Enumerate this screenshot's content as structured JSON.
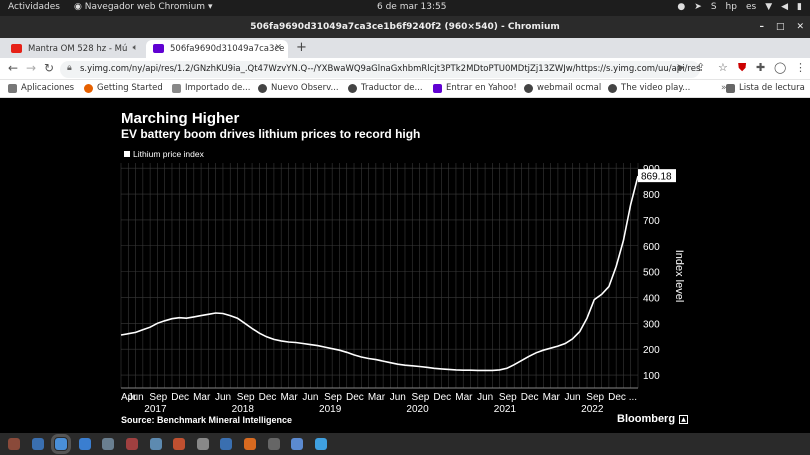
{
  "topbar": {
    "activities": "Actividades",
    "app_menu": "Navegador web Chromium",
    "clock": "6 de mar  13:55",
    "lang": "es"
  },
  "window": {
    "title": "506fa9690d31049a7ca3ce1b6f9240f2 (960×540) - Chromium"
  },
  "tabs": [
    {
      "label": "Mantra OM 528 hz - Mú",
      "color": "#e62117"
    },
    {
      "label": "506fa9690d31049a7ca3ce",
      "color": "#6001d2"
    }
  ],
  "omnibox": {
    "url": "s.yimg.com/ny/api/res/1.2/GNzhKU9ia_.Qt47WzvYN.Q--/YXBwaWQ9aGlnaGxhbmRlcjt3PTk2MDtoPTU0MDtjZj13ZWJw/https://s.yimg.com/uu/api/res/1.2/..."
  },
  "bookmarks": [
    {
      "label": "Aplicaciones",
      "color": "#777"
    },
    {
      "label": "Getting Started",
      "color": "#e66000"
    },
    {
      "label": "Importado de...",
      "color": "#888"
    },
    {
      "label": "Nuevo Observ...",
      "color": "#444"
    },
    {
      "label": "Traductor de...",
      "color": "#444"
    },
    {
      "label": "Entrar en Yahoo!",
      "color": "#6001d2"
    },
    {
      "label": "webmail ocmal",
      "color": "#444"
    },
    {
      "label": "The video play...",
      "color": "#444"
    },
    {
      "label": "Lista de lectura",
      "color": "#666"
    }
  ],
  "chart_page": {
    "title": "Marching Higher",
    "subtitle": "EV battery boom drives lithium prices to record high",
    "source": "Source: Benchmark Mineral Intelligence",
    "brand": "Bloomberg",
    "callout": "869.18"
  },
  "chart_data": {
    "type": "line",
    "ylabel": "Index level",
    "ylim": [
      50,
      920
    ],
    "y_ticks": [
      100,
      200,
      300,
      400,
      500,
      600,
      700,
      800,
      900
    ],
    "series": [
      {
        "name": "Lithium price index",
        "color": "#ffffff",
        "x": [
          0,
          1,
          2,
          3,
          4,
          5,
          6,
          7,
          8,
          9,
          10,
          11,
          12,
          13,
          14,
          15,
          16,
          17,
          18,
          19,
          20,
          21,
          22,
          23,
          24,
          25,
          26,
          27,
          28,
          29,
          30,
          31,
          32,
          33,
          34,
          35,
          36,
          37,
          38,
          39,
          40,
          41,
          42,
          43,
          44,
          45,
          46,
          47,
          48,
          49,
          50,
          51,
          52,
          53,
          54,
          55,
          56,
          57,
          58,
          59,
          60,
          61,
          62,
          63,
          64,
          65,
          66,
          67,
          68,
          69,
          70,
          71
        ],
        "values": [
          255,
          260,
          265,
          275,
          285,
          300,
          310,
          318,
          322,
          320,
          325,
          330,
          335,
          340,
          338,
          330,
          320,
          300,
          280,
          262,
          248,
          238,
          232,
          228,
          226,
          222,
          218,
          214,
          208,
          202,
          196,
          188,
          178,
          170,
          164,
          160,
          154,
          148,
          142,
          138,
          136,
          133,
          130,
          126,
          124,
          122,
          120,
          119,
          119,
          118,
          118,
          118,
          120,
          126,
          140,
          156,
          172,
          186,
          196,
          204,
          212,
          222,
          240,
          268,
          320,
          392,
          412,
          442,
          520,
          620,
          760,
          869.18
        ]
      }
    ],
    "x_ticks": [
      {
        "i": 0,
        "label": "Apr"
      },
      {
        "i": 2,
        "label": "Jun"
      },
      {
        "i": 5,
        "label": "Sep"
      },
      {
        "i": 8,
        "label": "Dec"
      },
      {
        "i": 11,
        "label": "Mar"
      },
      {
        "i": 14,
        "label": "Jun"
      },
      {
        "i": 17,
        "label": "Sep"
      },
      {
        "i": 20,
        "label": "Dec"
      },
      {
        "i": 23,
        "label": "Mar"
      },
      {
        "i": 26,
        "label": "Jun"
      },
      {
        "i": 29,
        "label": "Sep"
      },
      {
        "i": 32,
        "label": "Dec"
      },
      {
        "i": 35,
        "label": "Mar"
      },
      {
        "i": 38,
        "label": "Jun"
      },
      {
        "i": 41,
        "label": "Sep"
      },
      {
        "i": 44,
        "label": "Dec"
      },
      {
        "i": 47,
        "label": "Mar"
      },
      {
        "i": 50,
        "label": "Jun"
      },
      {
        "i": 53,
        "label": "Sep"
      },
      {
        "i": 56,
        "label": "Dec"
      },
      {
        "i": 59,
        "label": "Mar"
      },
      {
        "i": 62,
        "label": "Jun"
      },
      {
        "i": 65,
        "label": "Sep"
      },
      {
        "i": 68,
        "label": "Dec ..."
      }
    ],
    "years": [
      {
        "i": 5,
        "label": "2017"
      },
      {
        "i": 17,
        "label": "2018"
      },
      {
        "i": 29,
        "label": "2019"
      },
      {
        "i": 41,
        "label": "2020"
      },
      {
        "i": 53,
        "label": "2021"
      },
      {
        "i": 65,
        "label": "2022"
      }
    ],
    "background": "#000000",
    "grid": true,
    "legend": "top-left"
  },
  "taskbar": [
    {
      "name": "taskbar-app-1",
      "color": "#8a4a3a"
    },
    {
      "name": "taskbar-app-2",
      "color": "#3a6fb0"
    },
    {
      "name": "taskbar-app-3",
      "color": "#4a8fd8"
    },
    {
      "name": "taskbar-app-4",
      "color": "#3a7ed0"
    },
    {
      "name": "taskbar-app-5",
      "color": "#6a7f90"
    },
    {
      "name": "taskbar-app-6",
      "color": "#a04040"
    },
    {
      "name": "taskbar-app-7",
      "color": "#5d8ab0"
    },
    {
      "name": "taskbar-app-8",
      "color": "#c05030"
    },
    {
      "name": "taskbar-app-9",
      "color": "#888888"
    },
    {
      "name": "taskbar-app-10",
      "color": "#3a6fb0"
    },
    {
      "name": "taskbar-app-11",
      "color": "#d86a20"
    },
    {
      "name": "taskbar-app-12",
      "color": "#666666"
    },
    {
      "name": "taskbar-app-13",
      "color": "#5b8ad0"
    },
    {
      "name": "taskbar-app-14",
      "color": "#3fa0e0"
    }
  ]
}
